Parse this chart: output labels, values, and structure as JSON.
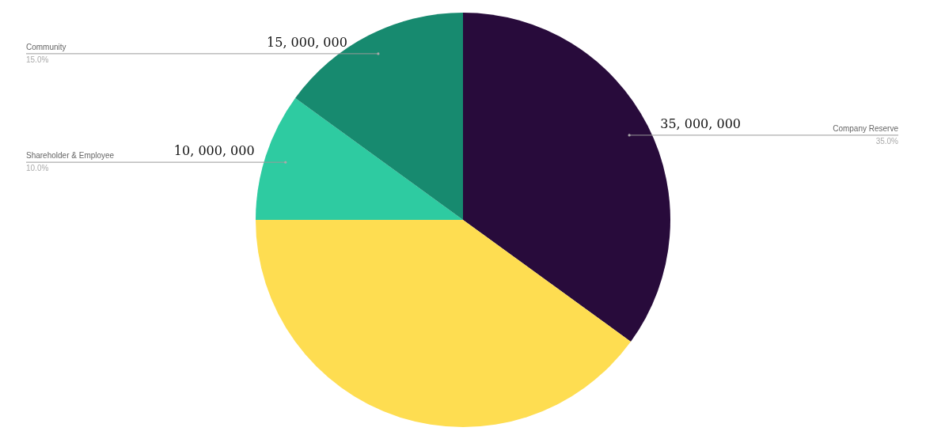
{
  "chart_data": {
    "type": "pie",
    "categories": [
      "Company Reserve",
      null,
      "Shareholder & Employee",
      "Community"
    ],
    "values": [
      35,
      40,
      10,
      15
    ],
    "colors": [
      "#280b3b",
      "#fedd51",
      "#2ecba1",
      "#178a6f"
    ],
    "value_labels": [
      "35, 000, 000",
      null,
      "10, 000, 000",
      "15, 000, 000"
    ],
    "annotations": [
      "35.0%",
      "10.0%",
      "15.0%"
    ]
  }
}
